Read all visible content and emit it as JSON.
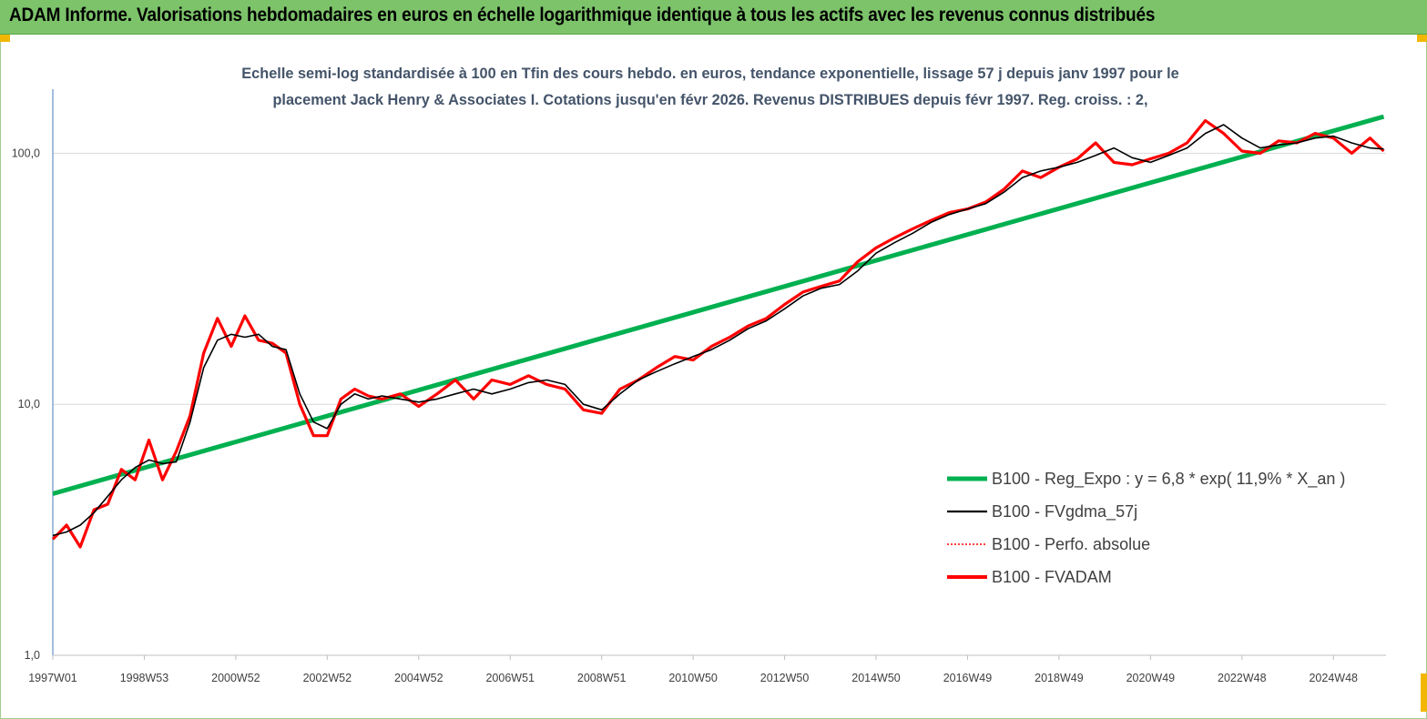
{
  "header": {
    "title": "ADAM Informe. Valorisations hebdomadaires en euros en échelle logarithmique identique à tous les actifs avec les revenus connus distribués"
  },
  "chart_data": {
    "type": "line",
    "title_line1": "Echelle semi-log standardisée à 100 en Tfin des cours hebdo. en euros, tendance exponentielle, lissage 57 j depuis janv 1997 pour le",
    "title_line2": "placement Jack Henry & Associates I. Cotations jusqu'en févr 2026. Revenus DISTRIBUES depuis févr 1997. Reg. croiss. : 2,",
    "y_scale": "log",
    "ylim": [
      1,
      180
    ],
    "y_ticks": [
      "1,0",
      "10,0",
      "100,0"
    ],
    "y_tick_values": [
      1,
      10,
      100
    ],
    "xlim": [
      1997.0,
      2026.15
    ],
    "x_ticks": [
      "1997W01",
      "1998W53",
      "2000W52",
      "2002W52",
      "2004W52",
      "2006W51",
      "2008W51",
      "2010W50",
      "2012W50",
      "2014W50",
      "2016W49",
      "2018W49",
      "2020W49",
      "2022W48",
      "2024W48"
    ],
    "x_tick_values": [
      1997.0,
      1999.0,
      2001.0,
      2003.0,
      2005.0,
      2007.0,
      2009.0,
      2011.0,
      2013.0,
      2015.0,
      2017.0,
      2019.0,
      2021.0,
      2023.0,
      2025.0
    ],
    "grid": "horizontal",
    "legend_position": "bottom-right",
    "colors": {
      "reg_expo": "#00b050",
      "fvgdma": "#000000",
      "perfo": "#ff0000",
      "fvadam": "#ff0000",
      "axis": "#4a7ebb",
      "grid": "#d9d9d9",
      "header": "#7cc36a",
      "subtitle": "#44546a"
    },
    "series": [
      {
        "name": "B100 - Reg_Expo : y = 6,8 * exp( 11,9% *  X_an )",
        "key": "reg_expo",
        "x": [
          1997.0,
          2026.1
        ],
        "y": [
          4.4,
          140
        ]
      },
      {
        "name": "B100 - FVgdma_57j",
        "key": "fvgdma",
        "x": [
          1997.0,
          1997.3,
          1997.6,
          1997.9,
          1998.2,
          1998.5,
          1998.8,
          1999.1,
          1999.4,
          1999.7,
          2000.0,
          2000.3,
          2000.6,
          2000.9,
          2001.2,
          2001.5,
          2001.8,
          2002.1,
          2002.4,
          2002.7,
          2003.0,
          2003.3,
          2003.6,
          2003.9,
          2004.2,
          2004.6,
          2005.0,
          2005.4,
          2005.8,
          2006.2,
          2006.6,
          2007.0,
          2007.4,
          2007.8,
          2008.2,
          2008.6,
          2009.0,
          2009.4,
          2009.8,
          2010.2,
          2010.6,
          2011.0,
          2011.4,
          2011.8,
          2012.2,
          2012.6,
          2013.0,
          2013.4,
          2013.8,
          2014.2,
          2014.6,
          2015.0,
          2015.4,
          2015.8,
          2016.2,
          2016.6,
          2017.0,
          2017.4,
          2017.8,
          2018.2,
          2018.6,
          2019.0,
          2019.4,
          2019.8,
          2020.2,
          2020.6,
          2021.0,
          2021.4,
          2021.8,
          2022.2,
          2022.6,
          2023.0,
          2023.4,
          2023.8,
          2024.2,
          2024.6,
          2025.0,
          2025.4,
          2025.8,
          2026.1
        ],
        "y": [
          3.0,
          3.1,
          3.3,
          3.7,
          4.3,
          5.0,
          5.6,
          6.0,
          5.8,
          5.9,
          8.5,
          14.0,
          18.0,
          19.0,
          18.5,
          19.0,
          17.0,
          16.5,
          11.0,
          8.5,
          8.0,
          10.0,
          11.0,
          10.5,
          10.8,
          10.5,
          10.2,
          10.5,
          11.0,
          11.5,
          11.0,
          11.5,
          12.2,
          12.5,
          12.0,
          10.0,
          9.5,
          11.0,
          12.5,
          13.5,
          14.5,
          15.5,
          16.5,
          18.0,
          20.0,
          21.5,
          24.0,
          27.0,
          29.0,
          30.0,
          34.0,
          40.0,
          44.0,
          48.0,
          53.0,
          57.0,
          60.0,
          63.0,
          70.0,
          80.0,
          85.0,
          88.0,
          92.0,
          98.0,
          105.0,
          96.0,
          92.0,
          98.0,
          105.0,
          120.0,
          130.0,
          115.0,
          105.0,
          108.0,
          110.0,
          115.0,
          117.0,
          110.0,
          105.0,
          104.0
        ]
      },
      {
        "name": "B100 - Perfo. absolue",
        "key": "perfo",
        "x": [],
        "y": []
      },
      {
        "name": "B100 - FVADAM",
        "key": "fvadam",
        "x": [
          1997.0,
          1997.3,
          1997.6,
          1997.9,
          1998.2,
          1998.5,
          1998.8,
          1999.1,
          1999.4,
          1999.7,
          2000.0,
          2000.3,
          2000.6,
          2000.9,
          2001.2,
          2001.5,
          2001.8,
          2002.1,
          2002.4,
          2002.7,
          2003.0,
          2003.3,
          2003.6,
          2003.9,
          2004.2,
          2004.6,
          2005.0,
          2005.4,
          2005.8,
          2006.2,
          2006.6,
          2007.0,
          2007.4,
          2007.8,
          2008.2,
          2008.6,
          2009.0,
          2009.4,
          2009.8,
          2010.2,
          2010.6,
          2011.0,
          2011.4,
          2011.8,
          2012.2,
          2012.6,
          2013.0,
          2013.4,
          2013.8,
          2014.2,
          2014.6,
          2015.0,
          2015.4,
          2015.8,
          2016.2,
          2016.6,
          2017.0,
          2017.4,
          2017.8,
          2018.2,
          2018.6,
          2019.0,
          2019.4,
          2019.8,
          2020.2,
          2020.6,
          2021.0,
          2021.4,
          2021.8,
          2022.2,
          2022.6,
          2023.0,
          2023.4,
          2023.8,
          2024.2,
          2024.6,
          2025.0,
          2025.4,
          2025.8,
          2026.1
        ],
        "y": [
          2.9,
          3.3,
          2.7,
          3.8,
          4.0,
          5.5,
          5.0,
          7.2,
          5.0,
          6.5,
          9.0,
          16.0,
          22.0,
          17.0,
          22.5,
          18.0,
          17.5,
          16.0,
          10.0,
          7.5,
          7.5,
          10.5,
          11.5,
          10.8,
          10.5,
          11.0,
          9.8,
          11.0,
          12.5,
          10.5,
          12.5,
          12.0,
          13.0,
          12.0,
          11.5,
          9.5,
          9.2,
          11.5,
          12.5,
          14.0,
          15.5,
          15.0,
          17.0,
          18.5,
          20.5,
          22.0,
          25.0,
          28.0,
          29.5,
          31.0,
          37.0,
          42.0,
          46.0,
          50.0,
          54.0,
          58.0,
          60.0,
          64.0,
          72.0,
          85.0,
          80.0,
          88.0,
          95.0,
          110.0,
          92.0,
          90.0,
          95.0,
          100.0,
          110.0,
          135.0,
          120.0,
          102.0,
          100.0,
          112.0,
          110.0,
          120.0,
          115.0,
          100.0,
          115.0,
          102.0
        ]
      }
    ]
  }
}
